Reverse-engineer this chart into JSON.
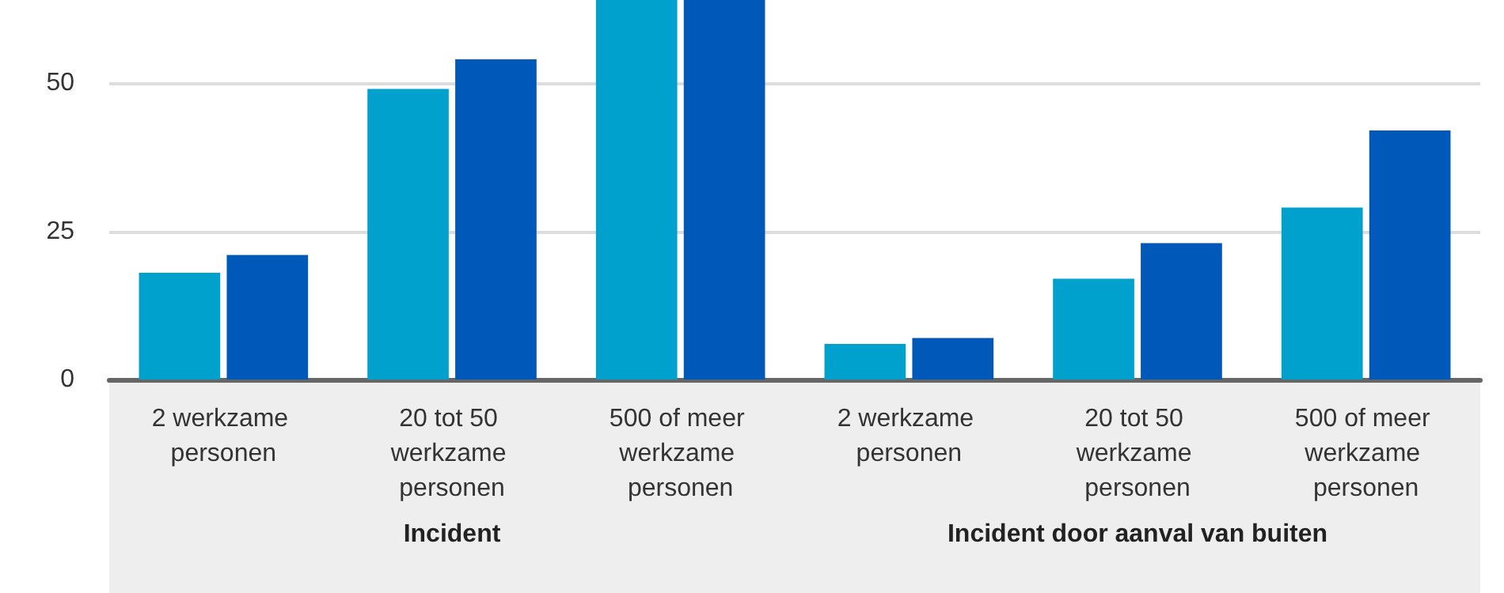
{
  "chart_data": {
    "type": "bar",
    "categories": [
      "2 werkzame personen",
      "20 tot 50 werkzame personen",
      "500 of meer werkzame personen",
      "2 werkzame personen",
      "20 tot 50 werkzame personen",
      "500 of meer werkzame personen"
    ],
    "series": [
      {
        "color": "#00a1cd",
        "values": [
          18,
          49,
          64,
          6,
          17,
          29
        ]
      },
      {
        "color": "#0058b8",
        "values": [
          21,
          54,
          64,
          7,
          23,
          42
        ]
      }
    ],
    "ylim": [
      0,
      64
    ],
    "yticks": [
      0,
      25,
      50
    ],
    "grid": "y",
    "annotations": [
      "Incident",
      "Incident door aanval van buiten"
    ]
  }
}
